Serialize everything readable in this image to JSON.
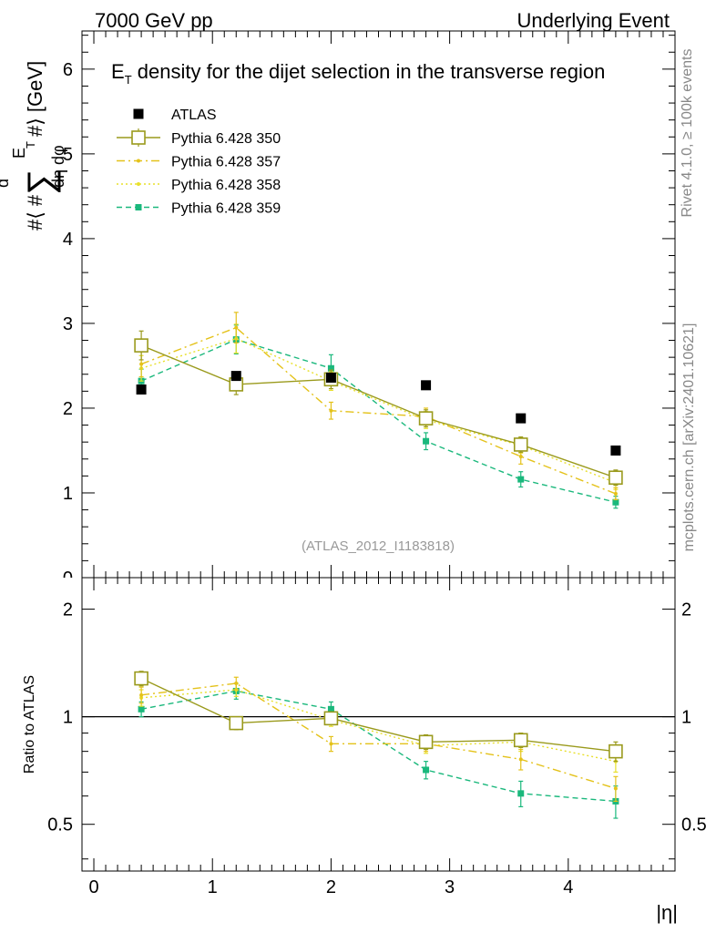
{
  "header": {
    "left": "7000 GeV pp",
    "right": "Underlying Event"
  },
  "side": {
    "rivet": "Rivet 4.1.0, ≥ 100k events",
    "mcplots": "mcplots.cern.ch [arXiv:2401.10621]"
  },
  "chart_data": {
    "type": "scatter",
    "title_main": "E",
    "title_sub": "T",
    "title_rest": " density  for the dijet selection in the transverse region",
    "watermark": "(ATLAS_2012_I1183818)",
    "ylabel_parts": [
      "#⟨ #",
      "d",
      "∑",
      "E",
      "T",
      "dη dφ",
      "#⟩ [GeV]"
    ],
    "xlabel": "|η|",
    "ratio_ylabel": "Ratio to ATLAS",
    "x": [
      0.4,
      1.2,
      2.0,
      2.8,
      3.6,
      4.4
    ],
    "xlim": [
      -0.1,
      4.9
    ],
    "ylim_main": [
      0,
      6.45
    ],
    "ylim_ratio": [
      0.37,
      2.45
    ],
    "x_ticks": [
      "0",
      "1",
      "2",
      "3",
      "4"
    ],
    "y_ticks_main": [
      "1",
      "2",
      "3",
      "4",
      "5",
      "6"
    ],
    "y_ticks_main_partial": "0",
    "y_ticks_ratio": [
      "0.5",
      "1",
      "2"
    ],
    "data": {
      "name": "ATLAS",
      "values": [
        2.22,
        2.38,
        2.36,
        2.27,
        1.88,
        1.5
      ],
      "errors": [
        0.03,
        0.04,
        0.04,
        0.03,
        0.03,
        0.03
      ]
    },
    "series": [
      {
        "name": "Pythia 6.428 350",
        "color": "#9a9a1c",
        "style": "solid",
        "marker": "open-square",
        "values": [
          2.74,
          2.28,
          2.34,
          1.88,
          1.57,
          1.18
        ],
        "errors": [
          0.17,
          0.12,
          0.11,
          0.1,
          0.09,
          0.09
        ],
        "ratio": [
          1.28,
          0.96,
          0.99,
          0.85,
          0.86,
          0.8
        ],
        "ratio_errors": [
          0.06,
          0.04,
          0.04,
          0.04,
          0.04,
          0.05
        ]
      },
      {
        "name": "Pythia 6.428 357",
        "color": "#e4c21a",
        "style": "dashdot",
        "marker": "dot",
        "values": [
          2.52,
          2.95,
          1.97,
          1.9,
          1.43,
          0.99
        ],
        "errors": [
          0.15,
          0.18,
          0.1,
          0.1,
          0.09,
          0.07
        ],
        "ratio": [
          1.15,
          1.24,
          0.84,
          0.84,
          0.76,
          0.63
        ],
        "ratio_errors": [
          0.06,
          0.05,
          0.04,
          0.04,
          0.05,
          0.05
        ]
      },
      {
        "name": "Pythia 6.428 358",
        "color": "#e8e02c",
        "style": "dotted",
        "marker": "dot",
        "values": [
          2.47,
          2.82,
          2.32,
          1.86,
          1.56,
          1.12
        ],
        "errors": [
          0.15,
          0.17,
          0.11,
          0.1,
          0.09,
          0.08
        ],
        "ratio": [
          1.13,
          1.19,
          0.98,
          0.83,
          0.85,
          0.75
        ],
        "ratio_errors": [
          0.06,
          0.05,
          0.04,
          0.04,
          0.05,
          0.05
        ]
      },
      {
        "name": "Pythia 6.428 359",
        "color": "#1ab87c",
        "style": "dashed",
        "marker": "filled-square",
        "values": [
          2.32,
          2.81,
          2.47,
          1.61,
          1.16,
          0.89
        ],
        "errors": [
          0.14,
          0.17,
          0.16,
          0.1,
          0.09,
          0.07
        ],
        "ratio": [
          1.05,
          1.18,
          1.05,
          0.71,
          0.61,
          0.58
        ],
        "ratio_errors": [
          0.05,
          0.06,
          0.05,
          0.04,
          0.05,
          0.06
        ]
      }
    ]
  }
}
